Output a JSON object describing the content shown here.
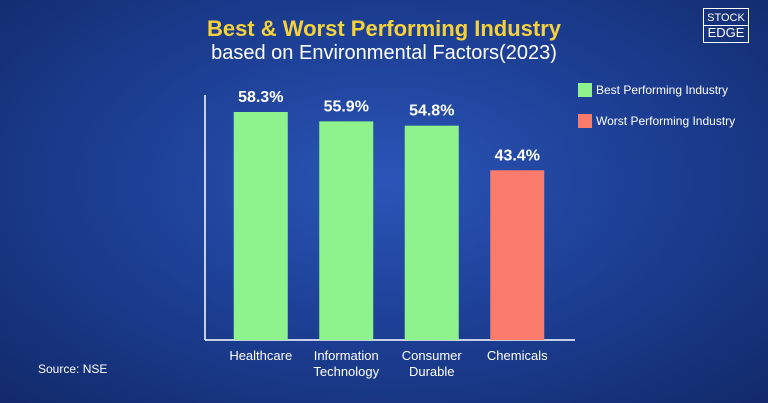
{
  "chart_data": {
    "type": "bar",
    "title": "Best & Worst Performing Industry",
    "subtitle": "based on Environmental Factors(2023)",
    "categories": [
      "Healthcare",
      "Information Technology",
      "Consumer Durable",
      "Chemicals"
    ],
    "series": [
      {
        "name": "Best Performing Industry",
        "color": "#8ef38c",
        "values": [
          58.3,
          55.9,
          54.8,
          null
        ],
        "value_labels": [
          "58.3%",
          "55.9%",
          "54.8%",
          null
        ]
      },
      {
        "name": "Worst Performing Industry",
        "color": "#f97b6b",
        "values": [
          null,
          null,
          null,
          43.4
        ],
        "value_labels": [
          null,
          null,
          null,
          "43.4%"
        ]
      }
    ],
    "legend": "upper right",
    "source": "Source: NSE"
  },
  "logo": {
    "top": "STOCK",
    "bottom": "EDGE"
  }
}
